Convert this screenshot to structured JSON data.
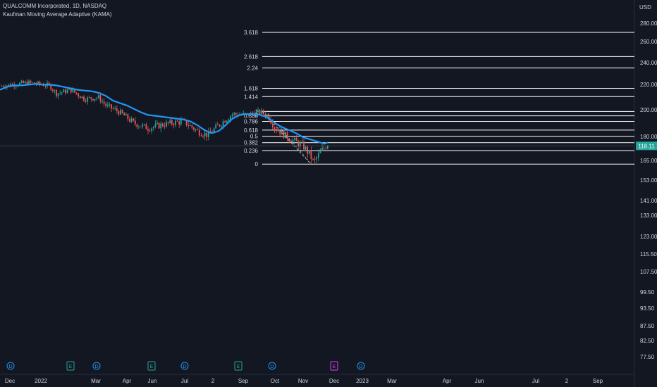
{
  "header": {
    "title": "QUALCOMM Incorporated, 1D, NASDAQ",
    "indicator": "Kaufman Moving Average Adaptive (KAMA)",
    "currency": "USD"
  },
  "colors": {
    "background": "#131722",
    "up": "#26a69a",
    "down": "#ef5350",
    "kama": "#2196f3",
    "fib": "#ffffff",
    "text": "#d1d4dc",
    "price_badge": "#26a69a"
  },
  "chart_data": {
    "type": "candlestick",
    "y_axis": {
      "ticks": [
        "280.00",
        "260.00",
        "240.00",
        "220.00",
        "200.00",
        "180.00",
        "165.00",
        "153.00",
        "141.00",
        "133.00",
        "123.00",
        "115.50",
        "107.50",
        "99.50",
        "93.50",
        "87.50",
        "82.50",
        "77.50"
      ],
      "scale": "log",
      "range": [
        74,
        300
      ]
    },
    "x_axis": {
      "ticks": [
        "Dec",
        "2022",
        "Mar",
        "Apr",
        "Jun",
        "Jul",
        "2",
        "Sep",
        "Oct",
        "Nov",
        "Dec",
        "2023",
        "Mar",
        "Apr",
        "Jun",
        "Jul",
        "2",
        "Sep"
      ]
    },
    "last_price": "118.11",
    "kama_points": [
      [
        0,
        180
      ],
      [
        10,
        184
      ],
      [
        20,
        186
      ],
      [
        30,
        186
      ],
      [
        40,
        187
      ],
      [
        50,
        188
      ],
      [
        60,
        187
      ],
      [
        70,
        187
      ],
      [
        80,
        186
      ],
      [
        90,
        184
      ],
      [
        100,
        182
      ],
      [
        110,
        180
      ],
      [
        120,
        179
      ],
      [
        130,
        178
      ],
      [
        140,
        176
      ],
      [
        150,
        172
      ],
      [
        160,
        166
      ],
      [
        170,
        163
      ],
      [
        180,
        160
      ],
      [
        190,
        156
      ],
      [
        200,
        152
      ],
      [
        210,
        149
      ],
      [
        220,
        148
      ],
      [
        230,
        147
      ],
      [
        240,
        146
      ],
      [
        250,
        145
      ],
      [
        260,
        144
      ],
      [
        270,
        142
      ],
      [
        280,
        138
      ],
      [
        290,
        133
      ],
      [
        300,
        130
      ],
      [
        310,
        132
      ],
      [
        320,
        138
      ],
      [
        330,
        145
      ],
      [
        340,
        149
      ],
      [
        350,
        150
      ],
      [
        360,
        150
      ],
      [
        370,
        149
      ],
      [
        380,
        146
      ],
      [
        390,
        140
      ],
      [
        400,
        136
      ],
      [
        410,
        133
      ],
      [
        420,
        130
      ],
      [
        430,
        126
      ],
      [
        440,
        124
      ],
      [
        450,
        122
      ],
      [
        460,
        120
      ],
      [
        465,
        121
      ]
    ],
    "fib_levels": [
      {
        "label": "3.618",
        "price": 277
      },
      {
        "label": "2.618",
        "price": 231
      },
      {
        "label": "2.24",
        "price": 212
      },
      {
        "label": "1.618",
        "price": 182
      },
      {
        "label": "1.414",
        "price": 171
      },
      {
        "label": "1",
        "price": 153
      },
      {
        "label": "0.886",
        "price": 148
      },
      {
        "label": "0.786",
        "price": 142
      },
      {
        "label": "0.618",
        "price": 133
      },
      {
        "label": "0.5",
        "price": 127
      },
      {
        "label": "0.382",
        "price": 121
      },
      {
        "label": "0.236",
        "price": 114
      },
      {
        "label": "0",
        "price": 103
      }
    ],
    "events": [
      "D",
      "E",
      "D",
      "E",
      "D",
      "E",
      "D",
      "E",
      "D"
    ]
  }
}
